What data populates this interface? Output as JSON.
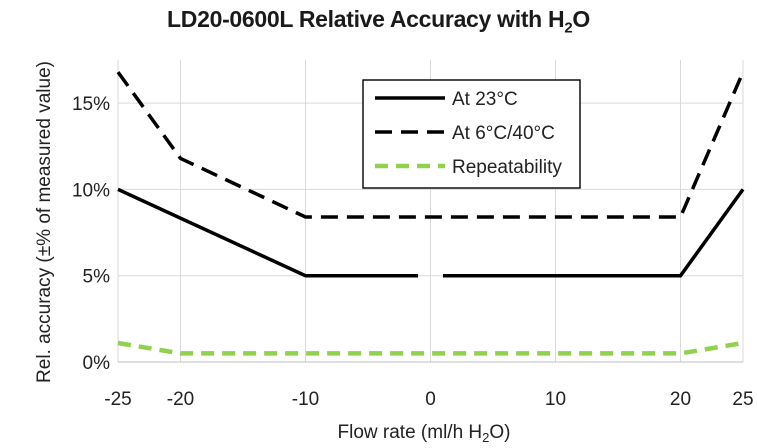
{
  "chart_data": {
    "type": "line",
    "title": {
      "text": "LD20-0600L Relative Accuracy with H",
      "sub": "2",
      "after": "O"
    },
    "xlabel": {
      "text": "Flow rate (ml/h H",
      "sub": "2",
      "after": "O)"
    },
    "ylabel": "Rel. accuracy  (±% of measured  value)",
    "xlim": [
      -25,
      25
    ],
    "ylim": [
      0,
      17.5
    ],
    "xticks": [
      -25,
      -20,
      -10,
      0,
      10,
      20,
      25
    ],
    "yticks": [
      0,
      5,
      10,
      15
    ],
    "ytick_labels": [
      "0%",
      "5%",
      "10%",
      "15%"
    ],
    "grid": true,
    "legend_position": "top-right",
    "series": [
      {
        "name": "At 23°C",
        "style": "solid",
        "color": "#000000",
        "x": [
          -25,
          -10,
          -1,
          1,
          20,
          25
        ],
        "y": [
          10,
          5,
          5,
          null,
          5,
          10
        ],
        "segments": [
          [
            [
              -25,
              10
            ],
            [
              -10,
              5
            ],
            [
              -1,
              5
            ]
          ],
          [
            [
              1,
              5
            ],
            [
              20,
              5
            ],
            [
              25,
              10
            ]
          ]
        ]
      },
      {
        "name": "At 6°C/40°C",
        "style": "dashed",
        "color": "#000000",
        "x": [
          -25,
          -20,
          -10,
          20,
          25
        ],
        "y": [
          16.8,
          11.8,
          8.4,
          8.4,
          16.8
        ]
      },
      {
        "name": "Repeatability",
        "style": "dashed",
        "color": "#92d050",
        "x": [
          -25,
          -20,
          20,
          25
        ],
        "y": [
          1.1,
          0.5,
          0.5,
          1.1
        ]
      }
    ]
  }
}
